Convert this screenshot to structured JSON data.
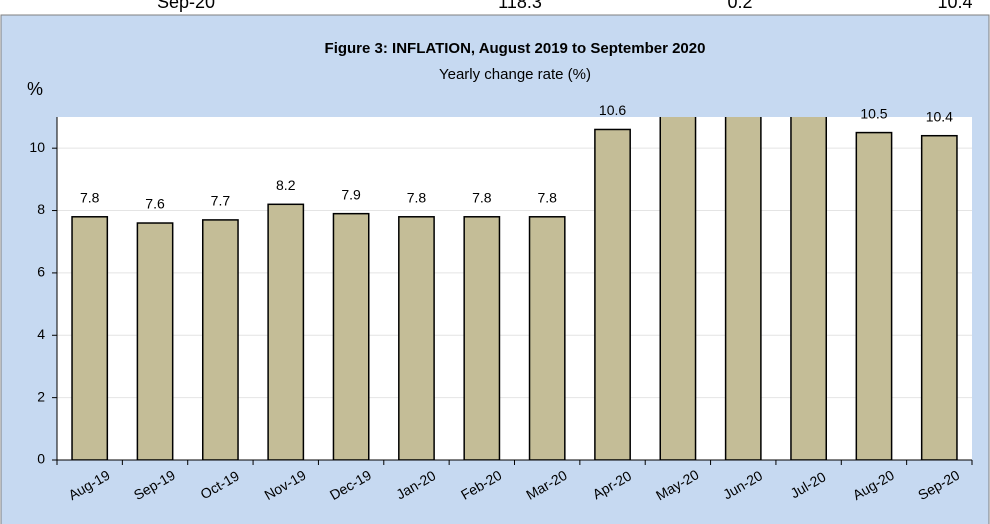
{
  "table_fragment": {
    "cells": [
      "Sep-20",
      "118.3",
      "0.2",
      "10.4"
    ]
  },
  "chart_data": {
    "type": "bar",
    "title": "Figure 3:   INFLATION, August 2019 to  September 2020",
    "subtitle": "Yearly change rate (%)",
    "y_label": "%",
    "categories": [
      "Aug-19",
      "Sep-19",
      "Oct-19",
      "Nov-19",
      "Dec-19",
      "Jan-20",
      "Feb-20",
      "Mar-20",
      "Apr-20",
      "May-20",
      "Jun-20",
      "Jul-20",
      "Aug-20",
      "Sep-20"
    ],
    "values": [
      7.8,
      7.6,
      7.7,
      8.2,
      7.9,
      7.8,
      7.8,
      7.8,
      10.6,
      11.5,
      12.0,
      11.8,
      10.5,
      10.4
    ],
    "color": "#c4bd97",
    "ylim": [
      0,
      11
    ],
    "yticks": [
      0,
      2,
      4,
      6,
      8,
      10
    ],
    "grid": true
  }
}
